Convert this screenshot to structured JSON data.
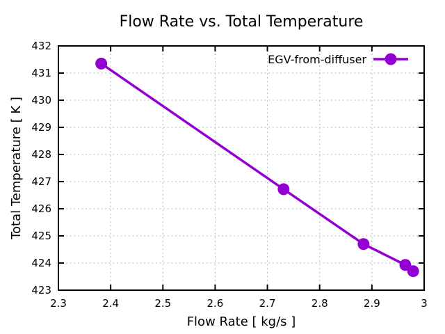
{
  "chart_data": {
    "type": "line",
    "title": "Flow Rate vs. Total Temperature",
    "xlabel": "Flow Rate [ kg/s ]",
    "ylabel": "Total Temperature [ K ]",
    "xlim": [
      2.3,
      3.0
    ],
    "ylim": [
      423,
      432
    ],
    "x_ticks": [
      2.3,
      2.4,
      2.5,
      2.6,
      2.7,
      2.8,
      2.9,
      3.0
    ],
    "x_tick_labels": [
      "2.3",
      "2.4",
      "2.5",
      "2.6",
      "2.7",
      "2.8",
      "2.9",
      "3"
    ],
    "y_ticks": [
      423,
      424,
      425,
      426,
      427,
      428,
      429,
      430,
      431,
      432
    ],
    "y_tick_labels": [
      "423",
      "424",
      "425",
      "426",
      "427",
      "428",
      "429",
      "430",
      "431",
      "432"
    ],
    "grid": true,
    "legend_position": "top-right-inside",
    "series": [
      {
        "name": "EGV-from-diffuser",
        "color": "#9400D3",
        "marker": "circle",
        "x": [
          2.382,
          2.731,
          2.884,
          2.964,
          2.979
        ],
        "y": [
          431.35,
          426.72,
          424.7,
          423.93,
          423.7
        ]
      }
    ],
    "colors": {
      "grid": "#b0b0b0",
      "axis": "#000000",
      "text": "#000000",
      "background": "#ffffff"
    }
  }
}
